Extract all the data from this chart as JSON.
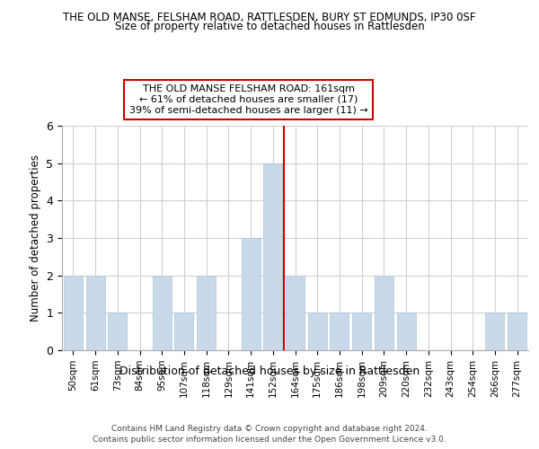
{
  "title_line1": "THE OLD MANSE, FELSHAM ROAD, RATTLESDEN, BURY ST EDMUNDS, IP30 0SF",
  "title_line2": "Size of property relative to detached houses in Rattlesden",
  "xlabel": "Distribution of detached houses by size in Rattlesden",
  "ylabel": "Number of detached properties",
  "categories": [
    "50sqm",
    "61sqm",
    "73sqm",
    "84sqm",
    "95sqm",
    "107sqm",
    "118sqm",
    "129sqm",
    "141sqm",
    "152sqm",
    "164sqm",
    "175sqm",
    "186sqm",
    "198sqm",
    "209sqm",
    "220sqm",
    "232sqm",
    "243sqm",
    "254sqm",
    "266sqm",
    "277sqm"
  ],
  "values": [
    2,
    2,
    1,
    0,
    2,
    1,
    2,
    0,
    3,
    5,
    2,
    1,
    1,
    1,
    2,
    1,
    0,
    0,
    0,
    1,
    1
  ],
  "bar_color": "#c8daea",
  "vline_index": 9,
  "ylim": [
    0,
    6
  ],
  "yticks": [
    0,
    1,
    2,
    3,
    4,
    5,
    6
  ],
  "annotation_title": "THE OLD MANSE FELSHAM ROAD: 161sqm",
  "annotation_line2": "← 61% of detached houses are smaller (17)",
  "annotation_line3": "39% of semi-detached houses are larger (11) →",
  "footer_line1": "Contains HM Land Registry data © Crown copyright and database right 2024.",
  "footer_line2": "Contains public sector information licensed under the Open Government Licence v3.0.",
  "vline_color": "#cc0000",
  "annotation_box_edgecolor": "#cc0000",
  "background_color": "#ffffff",
  "grid_color": "#d0d0d0"
}
